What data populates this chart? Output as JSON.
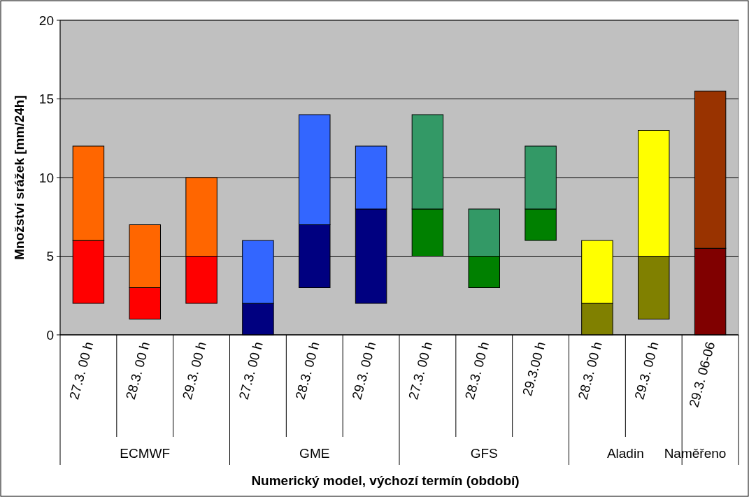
{
  "chart_data": {
    "type": "bar",
    "xlabel": "Numerický model, výchozí termín (období)",
    "ylabel": "Množství srážek [mm/24h]",
    "categories": [
      "27.3. 00 h",
      "28.3. 00 h",
      "29.3. 00 h",
      "27.3. 00 h",
      "28.3. 00 h",
      "29.3. 00 h",
      "27.3. 00 h",
      "28.3. 00 h",
      "29.3.00 h",
      "28.3. 00 h",
      "29.3. 00 h",
      "29.3. 06-06"
    ],
    "series": [
      {
        "base": [
          2,
          1,
          2,
          0,
          3,
          2,
          5,
          3,
          6,
          0,
          1,
          0
        ],
        "values": [
          4,
          2,
          3,
          2,
          4,
          6,
          3,
          2,
          2,
          2,
          4,
          5.5
        ],
        "colors": [
          "#ff0000",
          "#ff0000",
          "#ff0000",
          "#000080",
          "#000080",
          "#000080",
          "#008000",
          "#008000",
          "#008000",
          "#808000",
          "#808000",
          "#800000"
        ]
      },
      {
        "base": [
          6,
          3,
          5,
          2,
          7,
          8,
          8,
          5,
          8,
          2,
          5,
          5.5
        ],
        "values": [
          6,
          4,
          5,
          4,
          7,
          4,
          6,
          3,
          4,
          4,
          8,
          10
        ],
        "colors": [
          "#ff6600",
          "#ff6600",
          "#ff6600",
          "#3366ff",
          "#3366ff",
          "#3366ff",
          "#339966",
          "#339966",
          "#339966",
          "#ffff00",
          "#ffff00",
          "#993300"
        ]
      }
    ],
    "annotations": [
      "ECMWF",
      "GME",
      "GFS",
      "Aladin",
      "Naměřeno"
    ],
    "ylim": [
      0,
      20
    ],
    "yticks": [
      0,
      5,
      10,
      15,
      20
    ],
    "grid": "y"
  }
}
